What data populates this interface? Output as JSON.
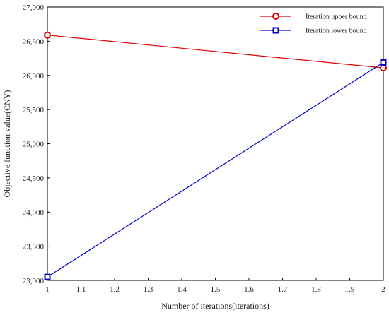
{
  "chart_data": {
    "type": "line",
    "title": "",
    "xlabel": "Number of iterations(iterations)",
    "ylabel": "Objective function value(CNY)",
    "xlim": [
      1,
      2
    ],
    "ylim": [
      23000,
      27000
    ],
    "x_ticks": [
      "1",
      "1.1",
      "1.2",
      "1.3",
      "1.4",
      "1.5",
      "1.6",
      "1.7",
      "1.8",
      "1.9",
      "2"
    ],
    "x_tick_values": [
      1,
      1.1,
      1.2,
      1.3,
      1.4,
      1.5,
      1.6,
      1.7,
      1.8,
      1.9,
      2
    ],
    "y_ticks": [
      "23,000",
      "23,500",
      "24,000",
      "24,500",
      "25,000",
      "25,500",
      "26,000",
      "26,500",
      "27,000"
    ],
    "y_tick_values": [
      23000,
      23500,
      24000,
      24500,
      25000,
      25500,
      26000,
      26500,
      27000
    ],
    "grid": false,
    "legend_position": "top-right",
    "series": [
      {
        "name": "Iteration upper bound",
        "x": [
          1,
          2
        ],
        "values": [
          26590,
          26110
        ],
        "color": "#e00000",
        "marker": "circle"
      },
      {
        "name": "Iteration lower bound",
        "x": [
          1,
          2
        ],
        "values": [
          23050,
          26190
        ],
        "color": "#0000c8",
        "marker": "square"
      }
    ]
  }
}
